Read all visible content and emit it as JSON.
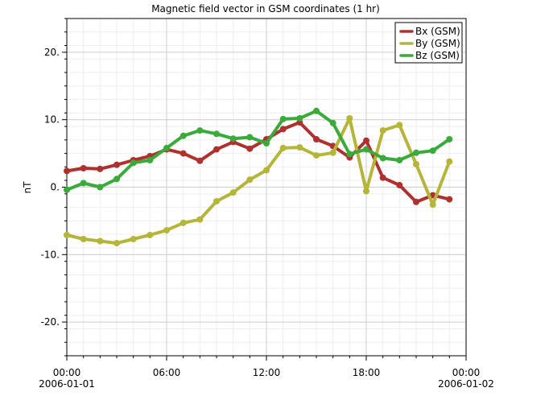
{
  "chart_data": {
    "type": "line",
    "title": "Magnetic field vector in GSM coordinates (1 hr)",
    "xlabel": "",
    "ylabel": "nT",
    "ylim": [
      -25,
      25
    ],
    "xlim": [
      "2006-01-01T00:00",
      "2006-01-02T00:00"
    ],
    "y_ticks": [
      {
        "value": 20,
        "label": "20."
      },
      {
        "value": 10,
        "label": "10."
      },
      {
        "value": 0,
        "label": "0."
      },
      {
        "value": -10,
        "label": "-10."
      },
      {
        "value": -20,
        "label": "-20."
      }
    ],
    "x_ticks": [
      {
        "value": "2006-01-01T00:00",
        "time": "00:00",
        "date": "2006-01-01"
      },
      {
        "value": "2006-01-01T06:00",
        "time": "06:00",
        "date": ""
      },
      {
        "value": "2006-01-01T12:00",
        "time": "12:00",
        "date": ""
      },
      {
        "value": "2006-01-01T18:00",
        "time": "18:00",
        "date": ""
      },
      {
        "value": "2006-01-02T00:00",
        "time": "00:00",
        "date": "2006-01-02"
      }
    ],
    "grid": true,
    "legend_position": "top-right",
    "x": [
      "2006-01-01T00:00",
      "2006-01-01T01:00",
      "2006-01-01T02:00",
      "2006-01-01T03:00",
      "2006-01-01T04:00",
      "2006-01-01T05:00",
      "2006-01-01T06:00",
      "2006-01-01T07:00",
      "2006-01-01T08:00",
      "2006-01-01T09:00",
      "2006-01-01T10:00",
      "2006-01-01T11:00",
      "2006-01-01T12:00",
      "2006-01-01T13:00",
      "2006-01-01T14:00",
      "2006-01-01T15:00",
      "2006-01-01T16:00",
      "2006-01-01T17:00",
      "2006-01-01T18:00",
      "2006-01-01T19:00",
      "2006-01-01T20:00",
      "2006-01-01T21:00",
      "2006-01-01T22:00",
      "2006-01-01T23:00"
    ],
    "series": [
      {
        "name": "Bx (GSM)",
        "color": "#b03030",
        "values": [
          2.4,
          2.8,
          2.7,
          3.3,
          4.0,
          4.6,
          5.6,
          5.0,
          3.9,
          5.6,
          6.7,
          5.7,
          7.1,
          8.6,
          9.6,
          7.1,
          6.1,
          4.4,
          6.9,
          1.4,
          0.3,
          -2.2,
          -1.2,
          -1.8
        ]
      },
      {
        "name": "By (GSM)",
        "color": "#b5b53a",
        "values": [
          -7.1,
          -7.7,
          -8.0,
          -8.3,
          -7.7,
          -7.1,
          -6.4,
          -5.3,
          -4.8,
          -2.1,
          -0.8,
          1.1,
          2.5,
          5.8,
          5.9,
          4.7,
          5.1,
          10.2,
          -0.6,
          8.4,
          9.2,
          3.4,
          -2.6,
          3.8
        ]
      },
      {
        "name": "Bz (GSM)",
        "color": "#3aaa3a",
        "values": [
          -0.4,
          0.6,
          0.0,
          1.2,
          3.6,
          4.0,
          5.8,
          7.6,
          8.4,
          7.9,
          7.2,
          7.4,
          6.5,
          10.1,
          10.2,
          11.3,
          9.5,
          4.9,
          5.6,
          4.3,
          4.0,
          5.1,
          5.4,
          7.1
        ]
      }
    ]
  }
}
